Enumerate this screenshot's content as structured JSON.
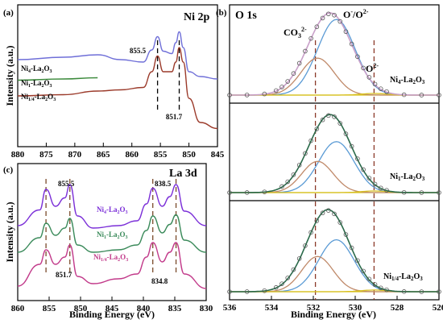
{
  "figure": {
    "panels": [
      {
        "id": "a",
        "label": "(a)",
        "title": "Ni 2p"
      },
      {
        "id": "b",
        "label": "(b)",
        "title": "O 1s"
      },
      {
        "id": "c",
        "label": "(c)",
        "title": "La 3d"
      }
    ],
    "ylabel": "Intensity (a.u.)",
    "xlabel": "Binding Energy (eV)"
  },
  "chart_data": [
    {
      "panel": "a",
      "type": "line",
      "title": "Ni 2p",
      "xlabel": "",
      "ylabel": "Intensity (a.u.)",
      "xlim": [
        880,
        845
      ],
      "xticks": [
        880,
        875,
        870,
        865,
        860,
        855,
        850,
        845
      ],
      "annotations": [
        "855.5",
        "851.7"
      ],
      "reference_lines": [
        855.5,
        851.7
      ],
      "series": [
        {
          "name": "Ni4-La2O3",
          "color": "#6f6fd8",
          "x": [
            880,
            872,
            866,
            862,
            858,
            856.5,
            855.5,
            854.5,
            853,
            852.3,
            851.7,
            851,
            850,
            848,
            845
          ],
          "y": [
            0.72,
            0.74,
            0.76,
            0.72,
            0.7,
            0.8,
            0.91,
            0.79,
            0.77,
            0.86,
            0.95,
            0.82,
            0.62,
            0.58,
            0.56
          ]
        },
        {
          "name": "Ni1-La2O3",
          "color": "#3c8a3c",
          "x": [
            880,
            872,
            866
          ],
          "y": [
            0.55,
            0.56,
            0.57
          ]
        },
        {
          "name": "Ni1/4-La2O3",
          "color": "#9b3a2a",
          "x": [
            880,
            872,
            866,
            862,
            858,
            856.5,
            855.5,
            854.5,
            853,
            852.3,
            851.7,
            851,
            850,
            848,
            845
          ],
          "y": [
            0.42,
            0.43,
            0.46,
            0.47,
            0.49,
            0.62,
            0.75,
            0.62,
            0.62,
            0.7,
            0.82,
            0.7,
            0.4,
            0.2,
            0.15
          ]
        }
      ]
    },
    {
      "panel": "b",
      "type": "scatter",
      "title": "O 1s",
      "xlabel": "Binding Energy (eV)",
      "ylabel": "",
      "xlim": [
        536,
        526
      ],
      "xticks": [
        536,
        534,
        532,
        530,
        528,
        526
      ],
      "peak_labels": [
        "CO3 2-",
        "O-/O2-",
        "O2-"
      ],
      "reference_lines": [
        531.9,
        529.1
      ],
      "subplots": [
        {
          "name": "Ni4-La2O3",
          "components": [
            {
              "center": 530.9,
              "height": 0.92,
              "width": 0.9,
              "color": "#5b9bd5"
            },
            {
              "center": 531.8,
              "height": 0.45,
              "width": 0.8,
              "color": "#c08a6a"
            },
            {
              "center": 529.1,
              "height": 0.02,
              "width": 0.6,
              "color": "#d8c020"
            }
          ],
          "envelope_center": 531.2,
          "envelope_height": 1.0,
          "envelope_width": 1.05
        },
        {
          "name": "Ni1-La2O3",
          "components": [
            {
              "center": 530.9,
              "height": 0.62,
              "width": 0.85,
              "color": "#5b9bd5"
            },
            {
              "center": 531.8,
              "height": 0.38,
              "width": 0.75,
              "color": "#c08a6a"
            },
            {
              "center": 529.1,
              "height": 0.02,
              "width": 0.6,
              "color": "#d8c020"
            }
          ],
          "envelope_center": 531.2,
          "envelope_height": 0.95,
          "envelope_width": 1.0
        },
        {
          "name": "Ni1/4-La2O3",
          "components": [
            {
              "center": 530.9,
              "height": 0.62,
              "width": 0.85,
              "color": "#5b9bd5"
            },
            {
              "center": 531.8,
              "height": 0.42,
              "width": 0.75,
              "color": "#c08a6a"
            },
            {
              "center": 529.1,
              "height": 0.02,
              "width": 0.6,
              "color": "#d8c020"
            }
          ],
          "envelope_center": 531.3,
          "envelope_height": 0.98,
          "envelope_width": 1.0
        }
      ]
    },
    {
      "panel": "c",
      "type": "line",
      "title": "La 3d",
      "xlabel": "Binding Energy (eV)",
      "ylabel": "Intensity (a.u.)",
      "xlim": [
        860,
        830
      ],
      "xticks": [
        860,
        855,
        850,
        845,
        840,
        835,
        830
      ],
      "annotations": [
        "855.5",
        "851.7",
        "838.5",
        "834.8"
      ],
      "reference_lines": [
        855.5,
        851.7,
        838.5,
        834.8
      ],
      "series": [
        {
          "name": "Ni4-La2O3",
          "color": "#7b2fd8",
          "x": [
            860,
            856.5,
            855.5,
            854,
            852.5,
            851.7,
            850.5,
            848,
            844,
            841,
            839.5,
            838.5,
            837,
            835.8,
            834.8,
            833.5,
            830
          ],
          "y": [
            0.62,
            0.75,
            0.92,
            0.78,
            0.85,
            0.96,
            0.7,
            0.6,
            0.62,
            0.66,
            0.8,
            0.93,
            0.78,
            0.86,
            0.96,
            0.74,
            0.62
          ]
        },
        {
          "name": "Ni1-La2O3",
          "color": "#3a8a5a",
          "x": [
            860,
            856.5,
            855.5,
            854,
            852.5,
            851.7,
            850.5,
            848,
            844,
            841,
            839.5,
            838.5,
            837,
            835.8,
            834.8,
            833.5,
            830
          ],
          "y": [
            0.4,
            0.52,
            0.64,
            0.54,
            0.6,
            0.68,
            0.46,
            0.4,
            0.42,
            0.46,
            0.58,
            0.7,
            0.56,
            0.63,
            0.71,
            0.5,
            0.4
          ]
        },
        {
          "name": "Ni1/4-La2O3",
          "color": "#c23a8a",
          "x": [
            860,
            856.5,
            855.5,
            854,
            852.5,
            851.7,
            850.5,
            848,
            844,
            841,
            839.5,
            838.5,
            837,
            835.8,
            834.8,
            833.5,
            830
          ],
          "y": [
            0.12,
            0.3,
            0.42,
            0.3,
            0.36,
            0.46,
            0.2,
            0.14,
            0.18,
            0.22,
            0.36,
            0.48,
            0.32,
            0.4,
            0.48,
            0.22,
            0.1
          ]
        }
      ]
    }
  ],
  "labels": {
    "a_peak1": "855.5",
    "a_peak2": "851.7",
    "a_ni4": "Ni",
    "a_ni4_sub": "4",
    "a_ni1": "Ni",
    "a_ni1_sub": "1",
    "a_ni14": "Ni",
    "a_ni14_sub": "1/4",
    "la2o3_text": "-La",
    "la2o3_sub2": "2",
    "la2o3_o": "O",
    "la2o3_sub3": "3",
    "b_co3": "CO",
    "b_co3_sub": "3",
    "b_co3_sup": "2-",
    "b_oo": "O",
    "b_oo_sup1": "-",
    "b_oo_mid": "/O",
    "b_oo_sup2": "2-",
    "b_o2": "O",
    "b_o2_sup": "2-",
    "c_p1": "855.5",
    "c_p2": "851.7",
    "c_p3": "838.5",
    "c_p4": "834.8"
  }
}
